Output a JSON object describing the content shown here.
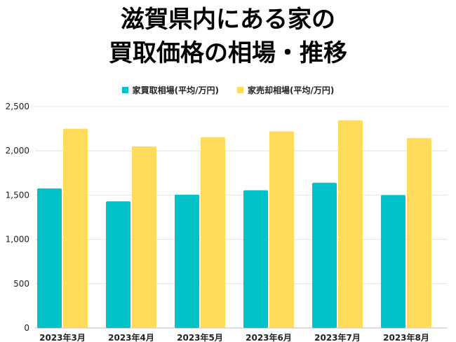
{
  "chart_data": {
    "type": "bar",
    "title_lines": [
      "滋賀県内にある家の",
      "買取価格の相場・推移"
    ],
    "categories": [
      "2023年3月",
      "2023年4月",
      "2023年5月",
      "2023年6月",
      "2023年7月",
      "2023年8月"
    ],
    "series": [
      {
        "name": "家買取相場(平均/万円)",
        "color": "#00c2c7",
        "values": [
          1575,
          1430,
          1505,
          1555,
          1640,
          1500
        ]
      },
      {
        "name": "家売却相場(平均/万円)",
        "color": "#ffdb5c",
        "values": [
          2250,
          2050,
          2155,
          2220,
          2345,
          2145
        ]
      }
    ],
    "yticks": [
      "0",
      "500",
      "1,000",
      "1,500",
      "2,000",
      "2,500"
    ],
    "ylim": [
      0,
      2500
    ],
    "grid": true,
    "legend_position": "top-center"
  }
}
